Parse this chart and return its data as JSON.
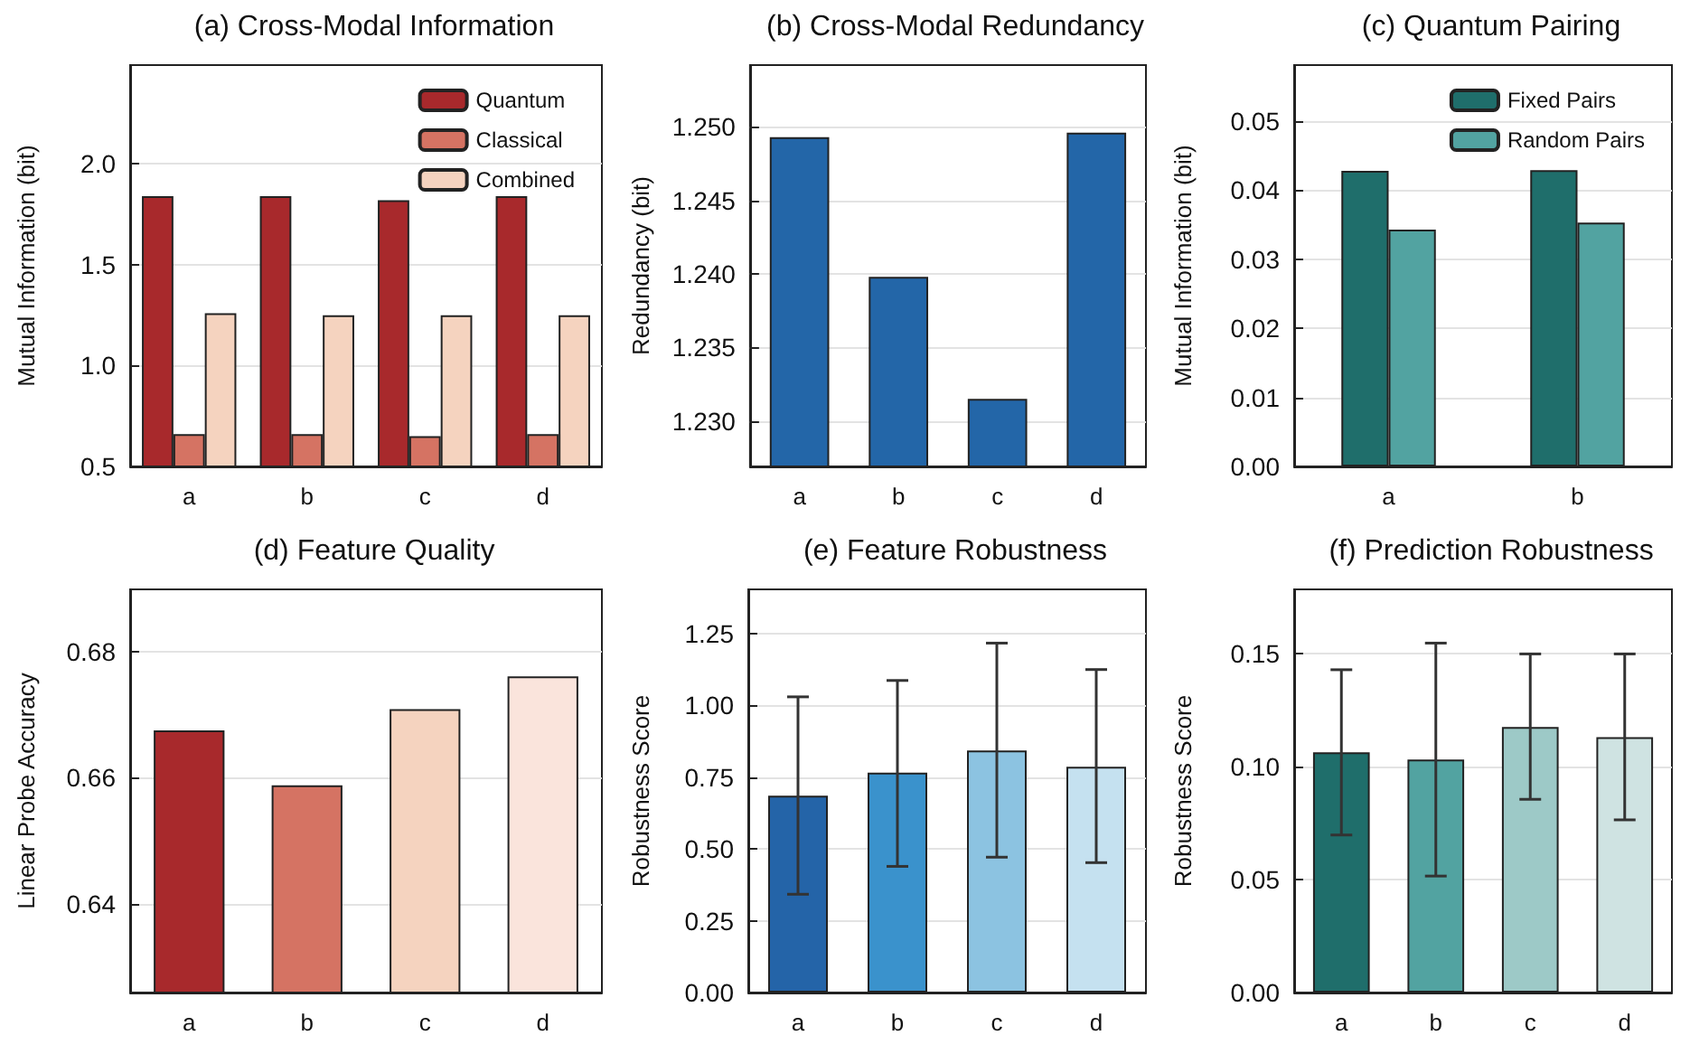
{
  "chart_data": [
    {
      "type": "bar",
      "title": "(a) Cross-Modal Information",
      "ylabel": "Mutual Information (bit)",
      "categories": [
        "a",
        "b",
        "c",
        "d"
      ],
      "series": [
        {
          "name": "Quantum",
          "color": "#a8292c",
          "values": [
            1.84,
            1.84,
            1.82,
            1.84
          ]
        },
        {
          "name": "Classical",
          "color": "#d57363",
          "values": [
            0.66,
            0.66,
            0.65,
            0.66
          ]
        },
        {
          "name": "Combined",
          "color": "#f5d3bf",
          "values": [
            1.26,
            1.25,
            1.25,
            1.25
          ]
        }
      ],
      "ylim": [
        0.5,
        2.49
      ],
      "yticks": [
        0.5,
        {
          "value": 1,
          "label": "1.0"
        },
        1.5,
        {
          "value": 2,
          "label": "2.0"
        }
      ],
      "grid": "y",
      "legend": "top right"
    },
    {
      "type": "bar",
      "title": "(b) Cross-Modal Redundancy",
      "ylabel": "Redundancy (bit)",
      "categories": [
        "a",
        "b",
        "c",
        "d"
      ],
      "values": [
        1.2493,
        1.2398,
        1.2315,
        1.2496
      ],
      "color": "#2366a8",
      "ylim": [
        1.2269,
        1.2542
      ],
      "yticks": [
        {
          "value": 1.23,
          "label": "1.230"
        },
        {
          "value": 1.235,
          "label": "1.235"
        },
        {
          "value": 1.24,
          "label": "1.240"
        },
        {
          "value": 1.245,
          "label": "1.245"
        },
        {
          "value": 1.25,
          "label": "1.250"
        }
      ],
      "grid": "y"
    },
    {
      "type": "bar",
      "title": "(c) Quantum Pairing",
      "ylabel": "Mutual Information (bit)",
      "categories": [
        "a",
        "b"
      ],
      "series": [
        {
          "name": "Fixed Pairs",
          "color": "#1f6e6b",
          "values": [
            0.0428,
            0.0429
          ]
        },
        {
          "name": "Random Pairs",
          "color": "#52a3a1",
          "values": [
            0.0343,
            0.0353
          ]
        }
      ],
      "ylim": [
        0,
        0.0581
      ],
      "yticks": [
        {
          "value": 0,
          "label": "0.00"
        },
        {
          "value": 0.01,
          "label": "0.01"
        },
        {
          "value": 0.02,
          "label": "0.02"
        },
        {
          "value": 0.03,
          "label": "0.03"
        },
        {
          "value": 0.04,
          "label": "0.04"
        },
        {
          "value": 0.05,
          "label": "0.05"
        }
      ],
      "grid": "y",
      "legend": "top right"
    },
    {
      "type": "bar",
      "title": "(d) Feature Quality",
      "ylabel": "Linear Probe Accuracy",
      "categories": [
        "a",
        "b",
        "c",
        "d"
      ],
      "values": [
        0.6675,
        0.6588,
        0.6709,
        0.6761
      ],
      "colors": [
        "#a8292c",
        "#d57363",
        "#f5d3bf",
        "#fae4dc"
      ],
      "ylim": [
        0.6259,
        0.6899
      ],
      "yticks": [
        0.64,
        0.66,
        0.68
      ],
      "grid": "y"
    },
    {
      "type": "bar",
      "title": "(e) Feature Robustness",
      "ylabel": "Robustness Score",
      "categories": [
        "a",
        "b",
        "c",
        "d"
      ],
      "values": [
        0.685,
        0.765,
        0.842,
        0.786
      ],
      "colors": [
        "#2464a8",
        "#3a92cc",
        "#8cc3e1",
        "#c5e1f0"
      ],
      "errors": [
        [
          0.342,
          1.029
        ],
        [
          0.439,
          1.086
        ],
        [
          0.471,
          1.216
        ],
        [
          0.452,
          1.124
        ]
      ],
      "ylim": [
        0,
        1.403
      ],
      "yticks": [
        {
          "value": 0,
          "label": "0.00"
        },
        {
          "value": 0.25,
          "label": "0.25"
        },
        {
          "value": 0.5,
          "label": "0.50"
        },
        {
          "value": 0.75,
          "label": "0.75"
        },
        {
          "value": 1,
          "label": "1.00"
        },
        {
          "value": 1.25,
          "label": "1.25"
        }
      ],
      "grid": "y"
    },
    {
      "type": "bar",
      "title": "(f) Prediction Robustness",
      "ylabel": "Robustness Score",
      "categories": [
        "a",
        "b",
        "c",
        "d"
      ],
      "values": [
        0.1064,
        0.1032,
        0.1176,
        0.1131
      ],
      "colors": [
        "#1f6e6b",
        "#52a3a1",
        "#9dc9c7",
        "#cfe3e2"
      ],
      "errors": [
        [
          0.0698,
          0.143
        ],
        [
          0.0516,
          0.1548
        ],
        [
          0.0856,
          0.15
        ],
        [
          0.0765,
          0.15
        ]
      ],
      "ylim": [
        0,
        0.1786
      ],
      "yticks": [
        {
          "value": 0,
          "label": "0.00"
        },
        {
          "value": 0.05,
          "label": "0.05"
        },
        {
          "value": 0.1,
          "label": "0.10"
        },
        {
          "value": 0.15,
          "label": "0.15"
        }
      ],
      "grid": "y"
    }
  ]
}
